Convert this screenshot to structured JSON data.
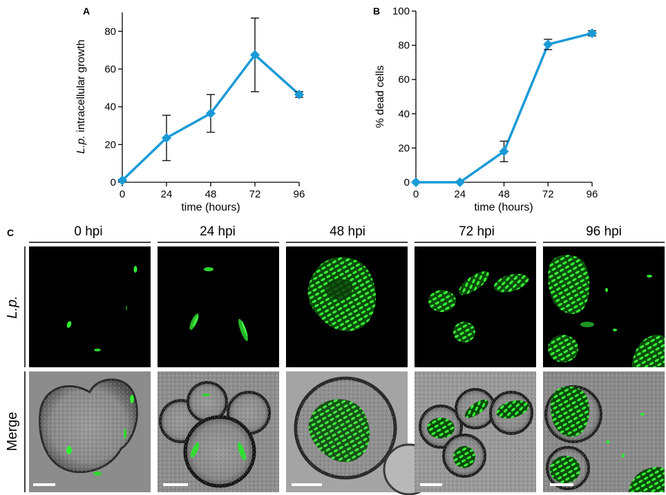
{
  "panels": {
    "a": "A",
    "b": "B",
    "c": "C"
  },
  "chart_data": [
    {
      "type": "line",
      "panel": "A",
      "title": "",
      "xlabel": "time (hours)",
      "ylabel_italic": "L.p.",
      "ylabel_rest": " intracellular growth",
      "x": [
        0,
        24,
        48,
        72,
        96
      ],
      "x_ticks": [
        "0",
        "24",
        "48",
        "72",
        "96"
      ],
      "xlim": [
        0,
        96
      ],
      "ylim": [
        0,
        90
      ],
      "y_ticks": [
        "0",
        "20",
        "40",
        "60",
        "80"
      ],
      "series": [
        {
          "values": [
            1,
            23.5,
            36.5,
            67.5,
            46.5
          ],
          "error": [
            0.5,
            12,
            10,
            19.5,
            1.5
          ],
          "color": "#1a9ad6"
        }
      ],
      "grid": false
    },
    {
      "type": "line",
      "panel": "B",
      "title": "",
      "xlabel": "time (hours)",
      "ylabel": "% dead cells",
      "x": [
        0,
        24,
        48,
        72,
        96
      ],
      "x_ticks": [
        "0",
        "24",
        "48",
        "72",
        "96"
      ],
      "xlim": [
        0,
        96
      ],
      "ylim": [
        0,
        100
      ],
      "y_ticks": [
        "0",
        "20",
        "40",
        "60",
        "80",
        "100"
      ],
      "series": [
        {
          "values": [
            0,
            0,
            18,
            80.5,
            87
          ],
          "error": [
            0,
            0.5,
            6,
            3,
            1.5
          ],
          "color": "#1a9ad6"
        }
      ],
      "grid": false
    }
  ],
  "micrographs": {
    "columns": [
      "0 hpi",
      "24 hpi",
      "48 hpi",
      "72 hpi",
      "96 hpi"
    ],
    "rows": [
      "L.p.",
      "Merge"
    ],
    "fluorescence_color": "#22dd22"
  }
}
